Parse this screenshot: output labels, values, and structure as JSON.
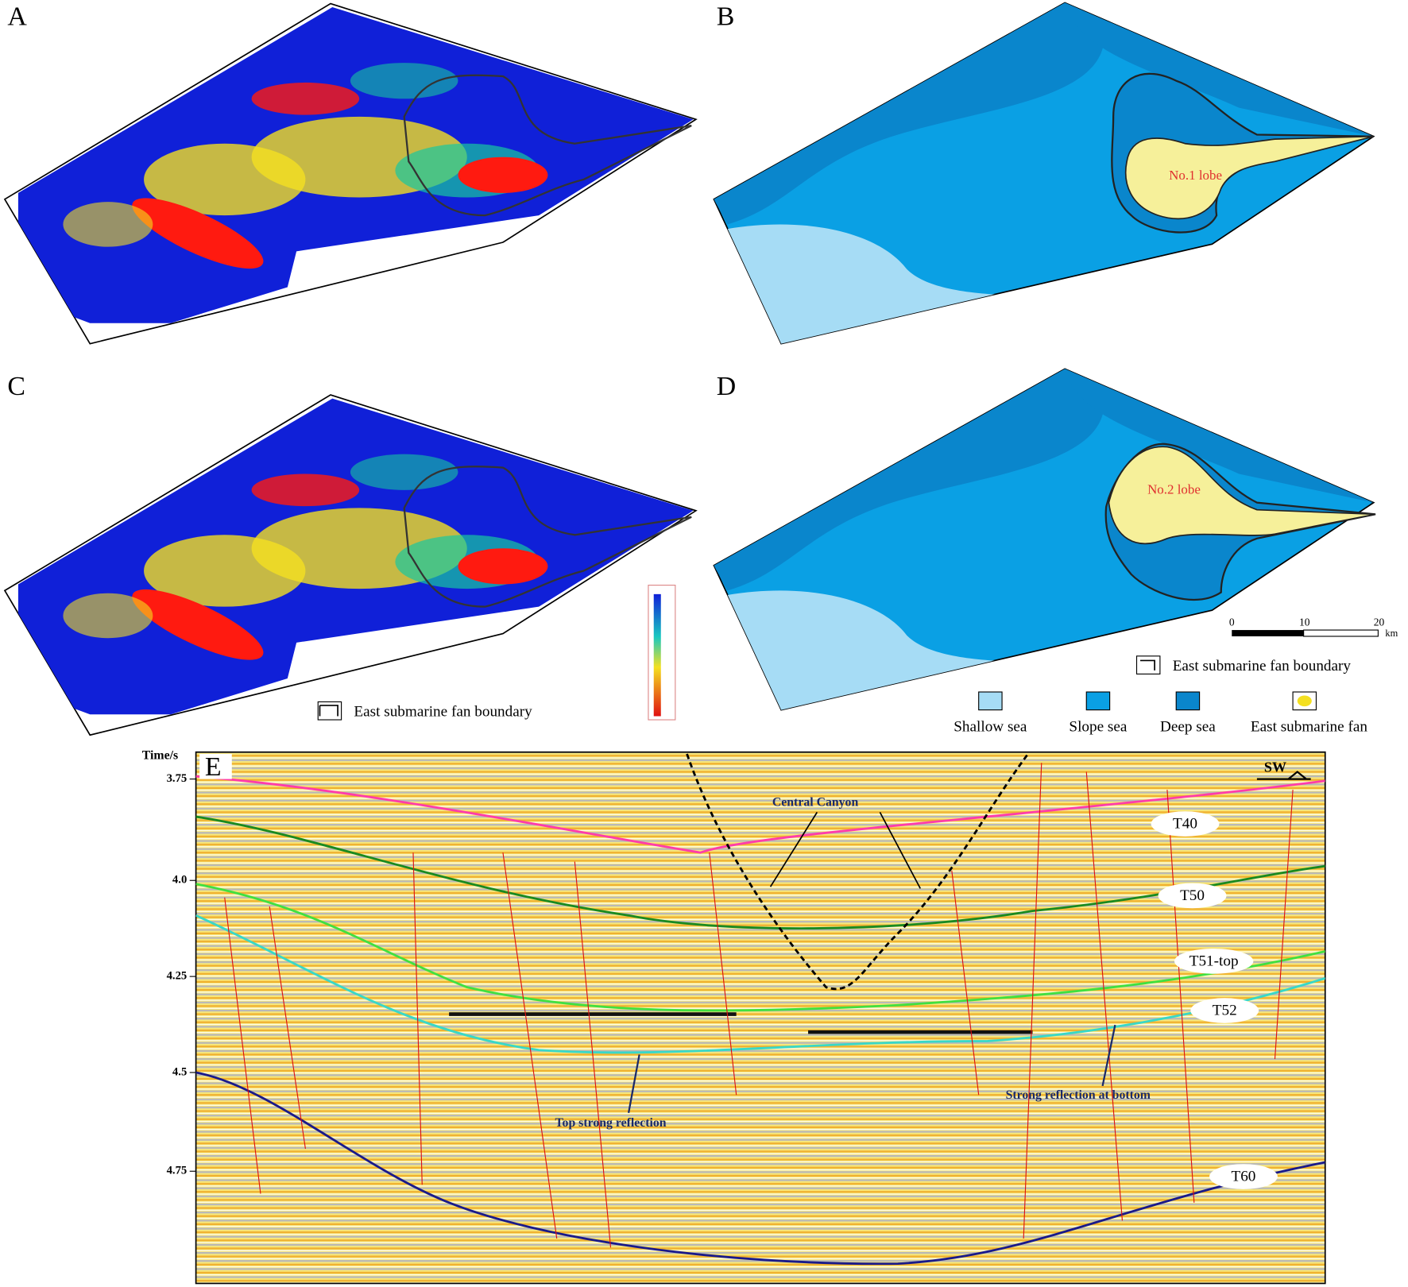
{
  "panels": {
    "a": {
      "label": "A"
    },
    "b": {
      "label": "B",
      "lobe": "No.1 lobe"
    },
    "c": {
      "label": "C",
      "legend": "East submarine fan boundary"
    },
    "d": {
      "label": "D",
      "lobe": "No.2 lobe",
      "legend": "East submarine fan boundary",
      "scale_ticks": [
        "0",
        "10",
        "20"
      ],
      "scale_unit": "km",
      "facies": [
        "Shallow sea",
        "Slope sea",
        "Deep sea",
        "East submarine fan"
      ]
    },
    "e": {
      "label": "E",
      "axis_title": "Time/s",
      "yticks": [
        "3.75",
        "4.0",
        "4.25",
        "4.5",
        "4.75"
      ],
      "direction": "SW",
      "horizons": [
        "T40",
        "T50",
        "T51-top",
        "T52",
        "T60"
      ],
      "annotations": [
        "Central Canyon",
        "Top strong reflection",
        "Strong reflection at bottom"
      ]
    }
  }
}
